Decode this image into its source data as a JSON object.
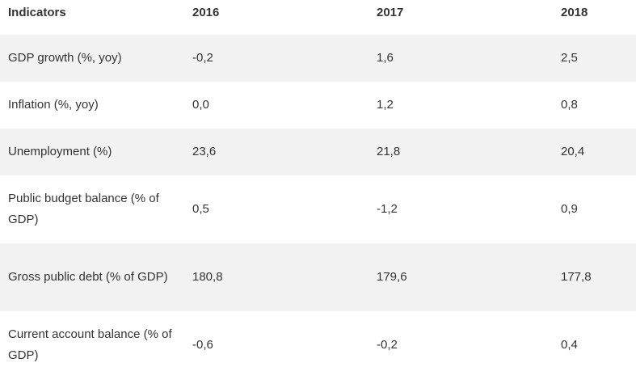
{
  "table": {
    "headers": [
      "Indicators",
      "2016",
      "2017",
      "2018"
    ],
    "rows": [
      {
        "label": "GDP growth (%, yoy)",
        "values": [
          "-0,2",
          "1,6",
          "2,5"
        ]
      },
      {
        "label": "Inflation (%, yoy)",
        "values": [
          "0,0",
          "1,2",
          "0,8"
        ]
      },
      {
        "label": "Unemployment (%)",
        "values": [
          "23,6",
          "21,8",
          "20,4"
        ]
      },
      {
        "label": "Public budget balance (% of GDP)",
        "values": [
          "0,5",
          "-1,2",
          "0,9"
        ]
      },
      {
        "label": "Gross public debt (% of GDP)",
        "values": [
          "180,8",
          "179,6",
          "177,8"
        ]
      },
      {
        "label": "Current account balance (% of GDP)",
        "values": [
          "-0,6",
          "-0,2",
          "0,4"
        ]
      }
    ]
  }
}
